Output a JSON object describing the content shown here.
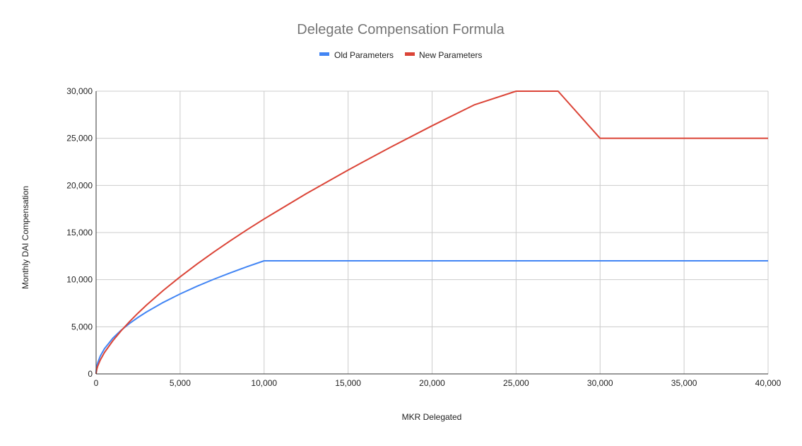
{
  "chart_data": {
    "type": "line",
    "title": "Delegate Compensation Formula",
    "xlabel": "MKR Delegated",
    "ylabel": "Monthly DAI Compensation",
    "xlim": [
      0,
      40000
    ],
    "ylim": [
      0,
      30000
    ],
    "x_ticks": [
      "0",
      "5,000",
      "10,000",
      "15,000",
      "20,000",
      "25,000",
      "30,000",
      "35,000",
      "40,000"
    ],
    "y_ticks": [
      "0",
      "5,000",
      "10,000",
      "15,000",
      "20,000",
      "25,000",
      "30,000"
    ],
    "grid": true,
    "legend_position": "top",
    "series": [
      {
        "name": "Old Parameters",
        "color": "#4285f4",
        "x": [
          0,
          10,
          50,
          100,
          250,
          500,
          1000,
          1500,
          2000,
          2500,
          3000,
          4000,
          5000,
          6000,
          7000,
          8000,
          9000,
          10000,
          15000,
          20000,
          25000,
          30000,
          35000,
          40000
        ],
        "y": [
          0,
          379,
          849,
          1200,
          1897,
          2683,
          3795,
          4648,
          5367,
          6000,
          6573,
          7590,
          8485,
          9295,
          10040,
          10733,
          11384,
          12000,
          12000,
          12000,
          12000,
          12000,
          12000,
          12000
        ]
      },
      {
        "name": "New Parameters",
        "color": "#db4437",
        "x": [
          0,
          10,
          50,
          100,
          250,
          500,
          1000,
          1500,
          2000,
          2500,
          3000,
          4000,
          5000,
          6000,
          7000,
          8000,
          9000,
          10000,
          12500,
          15000,
          17500,
          20000,
          22500,
          25000,
          27500,
          30000,
          35000,
          40000
        ],
        "y": [
          0,
          187,
          538,
          845,
          1477,
          2278,
          3525,
          4598,
          5566,
          6461,
          7301,
          8859,
          10298,
          11646,
          12924,
          14143,
          15313,
          16440,
          19112,
          21632,
          24031,
          26330,
          28540,
          30674,
          32738,
          25000,
          25000,
          25000
        ]
      }
    ]
  }
}
